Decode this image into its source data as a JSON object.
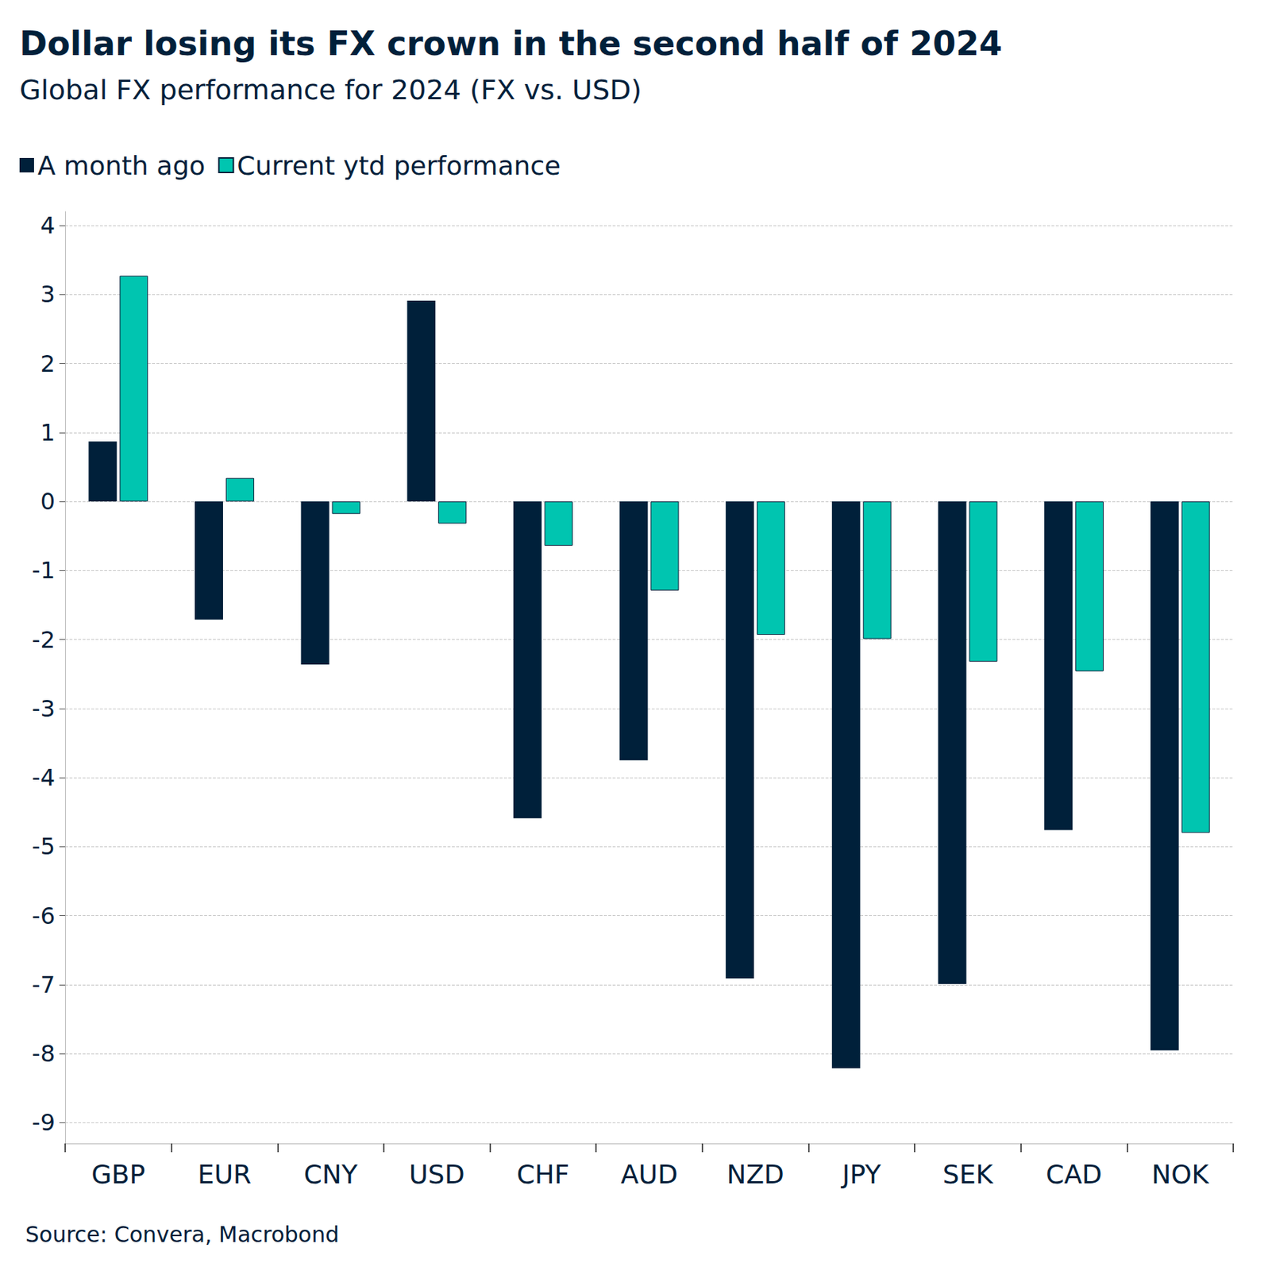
{
  "chart_data": {
    "type": "bar",
    "title": "Dollar losing its FX crown in the second half of 2024",
    "subtitle": "Global FX performance for 2024 (FX vs. USD)",
    "source": "Source: Convera, Macrobond",
    "categories": [
      "GBP",
      "EUR",
      "CNY",
      "USD",
      "CHF",
      "AUD",
      "NZD",
      "JPY",
      "SEK",
      "CAD",
      "NOK"
    ],
    "series": [
      {
        "name": "A month ago",
        "color": "#00203a",
        "values": [
          0.87,
          -1.71,
          -2.36,
          2.91,
          -4.59,
          -3.75,
          -6.91,
          -8.21,
          -6.99,
          -4.76,
          -7.95
        ]
      },
      {
        "name": "Current ytd performance",
        "color": "#00c5b0",
        "values": [
          3.27,
          0.34,
          -0.18,
          -0.32,
          -0.64,
          -1.29,
          -1.93,
          -1.99,
          -2.32,
          -2.46,
          -4.8
        ]
      }
    ],
    "ylim": [
      -9.3,
      4.2
    ],
    "yticks": [
      -9,
      -8,
      -7,
      -6,
      -5,
      -4,
      -3,
      -2,
      -1,
      0,
      1,
      2,
      3,
      4
    ],
    "grid": true,
    "legend": "top-left"
  }
}
